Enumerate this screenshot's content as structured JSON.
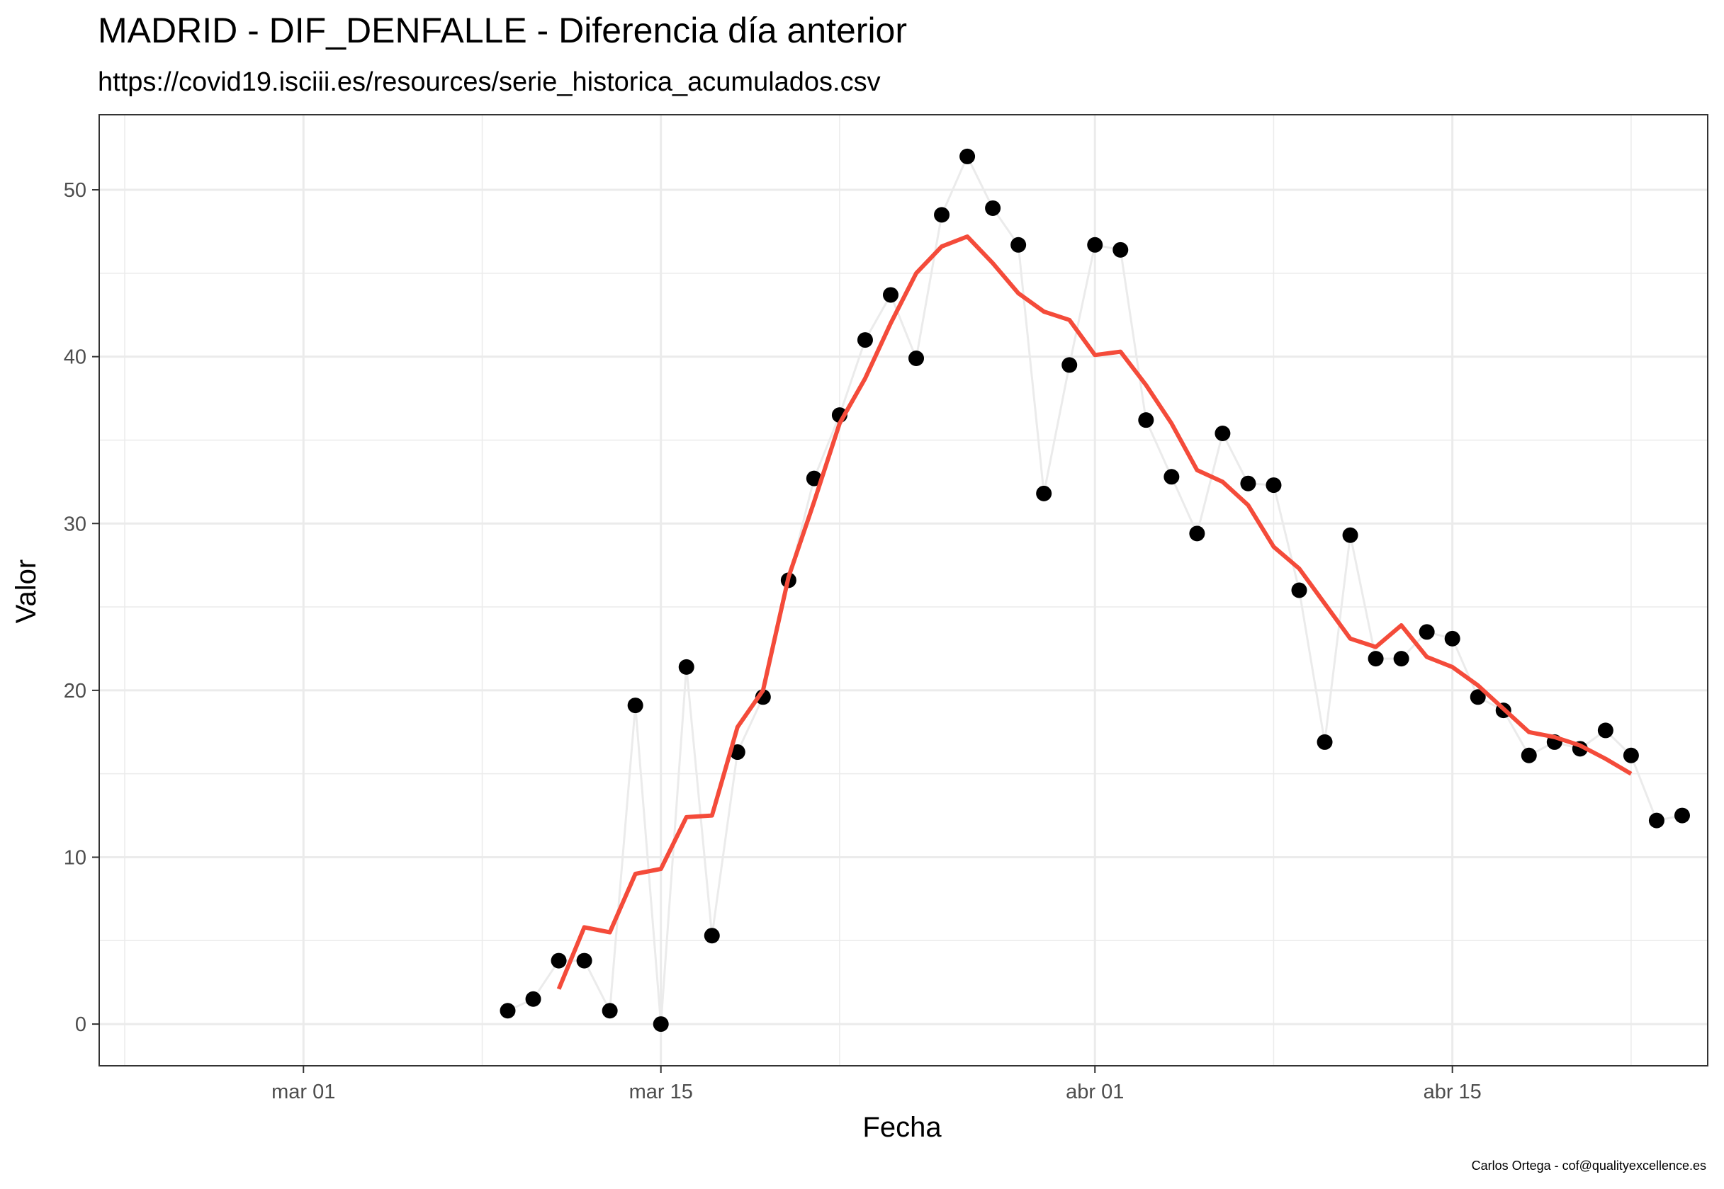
{
  "chart_data": {
    "type": "line",
    "title": "MADRID - DIF_DENFALLE - Diferencia día anterior",
    "subtitle": "https://covid19.isciii.es/resources/serie_historica_acumulados.csv",
    "xlabel": "Fecha",
    "ylabel": "Valor",
    "caption": "Carlos Ortega - cof@qualityexcellence.es",
    "xlim": [
      "2020-02-22",
      "2020-04-25"
    ],
    "ylim": [
      -2.5,
      54.5
    ],
    "x_ticks": [
      {
        "date": "2020-03-01",
        "label": "mar 01"
      },
      {
        "date": "2020-03-15",
        "label": "mar 15"
      },
      {
        "date": "2020-04-01",
        "label": "abr 01"
      },
      {
        "date": "2020-04-15",
        "label": "abr 15"
      }
    ],
    "x_minor_ticks": [
      "2020-02-23",
      "2020-03-08",
      "2020-03-22",
      "2020-04-08",
      "2020-04-22"
    ],
    "y_ticks": [
      0,
      10,
      20,
      30,
      40,
      50
    ],
    "y_minor_ticks": [
      5,
      15,
      25,
      35,
      45
    ],
    "grid": true,
    "series": [
      {
        "kind": "points-with-line",
        "color": "#000000",
        "line_color": "#ebebeb",
        "x": [
          "2020-03-09",
          "2020-03-10",
          "2020-03-11",
          "2020-03-12",
          "2020-03-13",
          "2020-03-14",
          "2020-03-15",
          "2020-03-16",
          "2020-03-17",
          "2020-03-18",
          "2020-03-19",
          "2020-03-20",
          "2020-03-21",
          "2020-03-22",
          "2020-03-23",
          "2020-03-24",
          "2020-03-25",
          "2020-03-26",
          "2020-03-27",
          "2020-03-28",
          "2020-03-29",
          "2020-03-30",
          "2020-03-31",
          "2020-04-01",
          "2020-04-02",
          "2020-04-03",
          "2020-04-04",
          "2020-04-05",
          "2020-04-06",
          "2020-04-07",
          "2020-04-08",
          "2020-04-09",
          "2020-04-10",
          "2020-04-11",
          "2020-04-12",
          "2020-04-13",
          "2020-04-14",
          "2020-04-15",
          "2020-04-16",
          "2020-04-17",
          "2020-04-18",
          "2020-04-19",
          "2020-04-20",
          "2020-04-21",
          "2020-04-22",
          "2020-04-23",
          "2020-04-24"
        ],
        "values": [
          0.8,
          1.5,
          3.8,
          3.8,
          0.8,
          19.1,
          0.0,
          21.4,
          5.3,
          16.3,
          19.6,
          26.6,
          32.7,
          36.5,
          41.0,
          43.7,
          39.9,
          48.5,
          52.0,
          48.9,
          46.7,
          31.8,
          39.5,
          46.7,
          46.4,
          36.2,
          32.8,
          29.4,
          35.4,
          32.4,
          32.3,
          26.0,
          16.9,
          29.3,
          21.9,
          21.9,
          23.5,
          23.1,
          19.6,
          18.8,
          16.1,
          16.9,
          16.5,
          17.6,
          16.1,
          12.2,
          12.5
        ]
      },
      {
        "kind": "line",
        "color": "#f44b3a",
        "x": [
          "2020-03-11",
          "2020-03-12",
          "2020-03-13",
          "2020-03-14",
          "2020-03-15",
          "2020-03-16",
          "2020-03-17",
          "2020-03-18",
          "2020-03-19",
          "2020-03-20",
          "2020-03-21",
          "2020-03-22",
          "2020-03-23",
          "2020-03-24",
          "2020-03-25",
          "2020-03-26",
          "2020-03-27",
          "2020-03-28",
          "2020-03-29",
          "2020-03-30",
          "2020-03-31",
          "2020-04-01",
          "2020-04-02",
          "2020-04-03",
          "2020-04-04",
          "2020-04-05",
          "2020-04-06",
          "2020-04-07",
          "2020-04-08",
          "2020-04-09",
          "2020-04-10",
          "2020-04-11",
          "2020-04-12",
          "2020-04-13",
          "2020-04-14",
          "2020-04-15",
          "2020-04-16",
          "2020-04-17",
          "2020-04-18",
          "2020-04-19",
          "2020-04-20",
          "2020-04-21",
          "2020-04-22"
        ],
        "values": [
          2.1,
          5.8,
          5.5,
          9.0,
          9.3,
          12.4,
          12.5,
          17.8,
          20.0,
          26.8,
          31.3,
          36.0,
          38.7,
          42.0,
          45.0,
          46.6,
          47.2,
          45.6,
          43.8,
          42.7,
          42.2,
          40.1,
          40.3,
          38.3,
          36.0,
          33.2,
          32.5,
          31.1,
          28.6,
          27.3,
          25.2,
          23.1,
          22.6,
          23.9,
          22.0,
          21.4,
          20.3,
          18.9,
          17.5,
          17.2,
          16.7,
          15.9,
          15.0
        ]
      }
    ]
  }
}
